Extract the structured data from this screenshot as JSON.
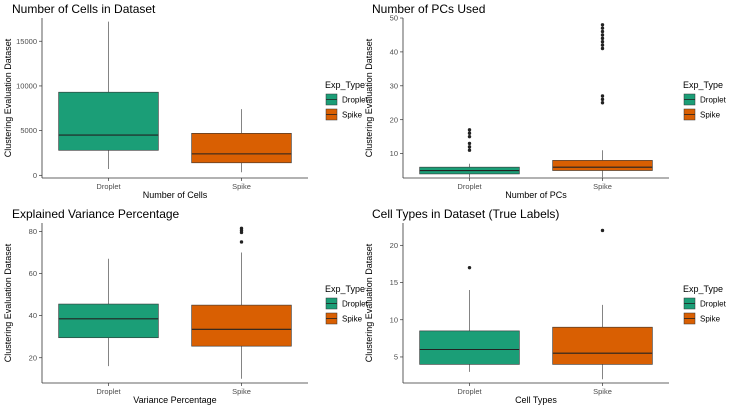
{
  "legend": {
    "title": "Exp_Type",
    "items": [
      {
        "label": "Droplet",
        "color": "#1b9e77"
      },
      {
        "label": "Spike",
        "color": "#d95f02"
      }
    ]
  },
  "chart_data": [
    {
      "type": "box",
      "title": "Number of Cells in Dataset",
      "xlabel": "Number of Cells",
      "ylabel": "Clustering Evaluation Dataset",
      "categories": [
        "Droplet",
        "Spike"
      ],
      "ylim": [
        -300,
        17600
      ],
      "yticks": [
        0,
        5000,
        10000,
        15000
      ],
      "boxes": [
        {
          "name": "Droplet",
          "min": 700,
          "q1": 2800,
          "median": 4500,
          "q3": 9300,
          "max": 17200,
          "outliers": []
        },
        {
          "name": "Spike",
          "min": 350,
          "q1": 1400,
          "median": 2400,
          "q3": 4700,
          "max": 7400,
          "outliers": []
        }
      ]
    },
    {
      "type": "box",
      "title": "Number of PCs Used",
      "xlabel": "Number of PCs",
      "ylabel": "Clustering Evaluation Dataset",
      "categories": [
        "Droplet",
        "Spike"
      ],
      "ylim": [
        2.8,
        50
      ],
      "yticks": [
        10,
        20,
        30,
        40,
        50
      ],
      "boxes": [
        {
          "name": "Droplet",
          "min": 3,
          "q1": 4,
          "median": 5,
          "q3": 6,
          "max": 7,
          "outliers": [
            11,
            12,
            13,
            15,
            16,
            17
          ]
        },
        {
          "name": "Spike",
          "min": 3,
          "q1": 5,
          "median": 6,
          "q3": 8,
          "max": 11,
          "outliers": [
            25,
            26,
            27,
            41,
            42,
            43,
            44,
            45,
            46,
            47,
            48
          ]
        }
      ]
    },
    {
      "type": "box",
      "title": "Explained Variance Percentage",
      "xlabel": "Variance Percentage",
      "ylabel": "Clustering Evaluation Dataset",
      "categories": [
        "Droplet",
        "Spike"
      ],
      "ylim": [
        8,
        84
      ],
      "yticks": [
        20,
        40,
        60,
        80
      ],
      "boxes": [
        {
          "name": "Droplet",
          "min": 16,
          "q1": 29.5,
          "median": 38.5,
          "q3": 45.5,
          "max": 67,
          "outliers": []
        },
        {
          "name": "Spike",
          "min": 10,
          "q1": 25.5,
          "median": 33.5,
          "q3": 45,
          "max": 70,
          "outliers": [
            75,
            79.5,
            80.5,
            81.5
          ]
        }
      ]
    },
    {
      "type": "box",
      "title": "Cell Types in Dataset (True Labels)",
      "xlabel": "Cell Types",
      "ylabel": "Clustering Evaluation Dataset",
      "categories": [
        "Droplet",
        "Spike"
      ],
      "ylim": [
        1.5,
        23
      ],
      "yticks": [
        5,
        10,
        15,
        20
      ],
      "boxes": [
        {
          "name": "Droplet",
          "min": 3,
          "q1": 4,
          "median": 6,
          "q3": 8.5,
          "max": 14,
          "outliers": [
            17
          ]
        },
        {
          "name": "Spike",
          "min": 2,
          "q1": 4,
          "median": 5.5,
          "q3": 9,
          "max": 12,
          "outliers": [
            22
          ]
        }
      ]
    }
  ]
}
